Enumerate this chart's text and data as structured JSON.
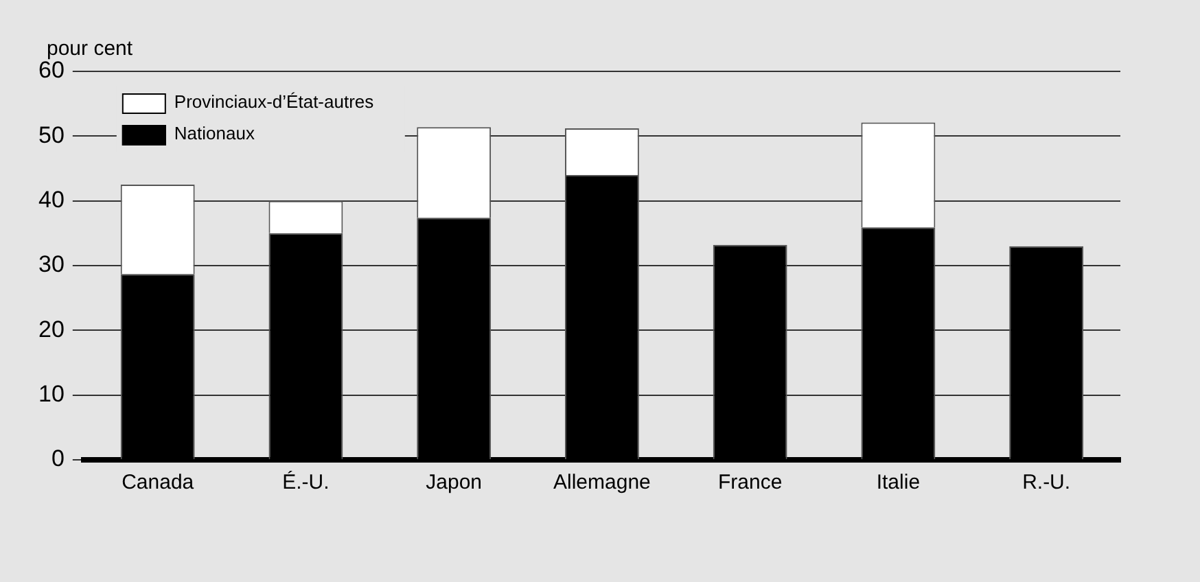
{
  "chart_data": {
    "type": "bar",
    "stacked": true,
    "ylabel": "pour cent",
    "categories": [
      "Canada",
      "É.-U.",
      "Japon",
      "Allemagne",
      "France",
      "Italie",
      "R.-U."
    ],
    "series": [
      {
        "name": "Nationaux",
        "color": "#000000",
        "values": [
          28.7,
          35,
          37.4,
          44,
          33.2,
          35.9,
          33
        ]
      },
      {
        "name": "Provinciaux-d’État-autres",
        "color": "#ffffff",
        "values": [
          13.8,
          5,
          14,
          7.2,
          null,
          16.2,
          null
        ]
      }
    ],
    "ylim": [
      0,
      60
    ],
    "yticks": [
      0,
      10,
      20,
      30,
      40,
      50,
      60
    ],
    "grid": "y",
    "legend": "top left"
  }
}
